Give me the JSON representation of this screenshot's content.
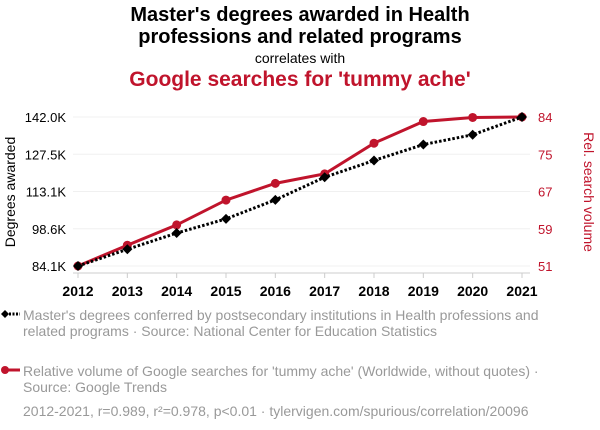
{
  "title_line1": "Master's degrees awarded in Health",
  "title_line2": "professions and related programs",
  "correlates": "correlates with",
  "title2": "Google searches for 'tummy ache'",
  "legend": [
    "Master's degrees conferred by postsecondary institutions in Health professions and related programs · Source: National Center for Education Statistics",
    "Relative volume of Google searches for 'tummy ache' (Worldwide, without quotes) · Source: Google Trends"
  ],
  "footer": "2012-2021, r=0.989, r²=0.978, p<0.01 · tylervigen.com/spurious/correlation/20096",
  "chart_data": {
    "type": "line",
    "x": [
      2012,
      2013,
      2014,
      2015,
      2016,
      2017,
      2018,
      2019,
      2020,
      2021
    ],
    "ylabel": "Degrees awarded",
    "y2label": "Rel. search volume",
    "ylim": [
      84100,
      142000
    ],
    "y2lim": [
      51,
      84
    ],
    "yticks": [
      "84.1K",
      "98.6K",
      "113.1K",
      "127.5K",
      "142.0K"
    ],
    "y2ticks": [
      "51",
      "59",
      "67",
      "75",
      "84"
    ],
    "grid": true,
    "series": [
      {
        "axis": "left",
        "color": "#000000",
        "style": "dotted",
        "marker": "diamond",
        "values": [
          84100,
          90600,
          96900,
          102400,
          109800,
          118600,
          125100,
          131300,
          135100,
          142000
        ]
      },
      {
        "axis": "right",
        "color": "#c0142c",
        "style": "solid",
        "marker": "circle",
        "values": [
          51,
          55.6,
          60.1,
          65.6,
          69.3,
          71.4,
          78.2,
          83,
          83.9,
          84
        ]
      }
    ]
  }
}
